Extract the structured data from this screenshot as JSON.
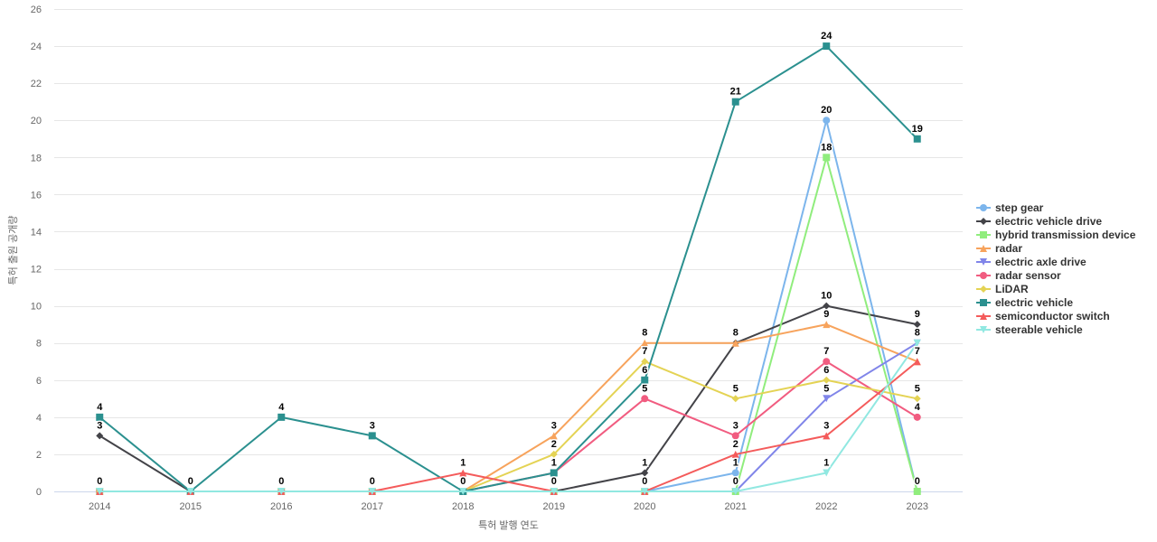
{
  "chart_data": {
    "type": "line",
    "title": "",
    "xlabel": "특허 발행 연도",
    "ylabel": "특허 출원 공개량",
    "categories": [
      "2014",
      "2015",
      "2016",
      "2017",
      "2018",
      "2019",
      "2020",
      "2021",
      "2022",
      "2023"
    ],
    "ylim": [
      0,
      26
    ],
    "ytick_step": 2,
    "grid": "horizontal",
    "legend_position": "right",
    "data_labels": true,
    "series": [
      {
        "name": "step gear",
        "color": "#7cb5ec",
        "marker": "circle",
        "values": [
          0,
          0,
          0,
          0,
          0,
          0,
          0,
          1,
          20,
          0
        ]
      },
      {
        "name": "electric vehicle drive",
        "color": "#434348",
        "marker": "diamond",
        "values": [
          3,
          0,
          0,
          0,
          0,
          0,
          1,
          8,
          10,
          9
        ]
      },
      {
        "name": "hybrid transmission device",
        "color": "#90ed7d",
        "marker": "square",
        "values": [
          0,
          0,
          0,
          0,
          0,
          0,
          0,
          0,
          18,
          0
        ]
      },
      {
        "name": "radar",
        "color": "#f7a35c",
        "marker": "triangle",
        "values": [
          0,
          0,
          0,
          0,
          0,
          3,
          8,
          8,
          9,
          7
        ]
      },
      {
        "name": "electric axle drive",
        "color": "#8085e9",
        "marker": "triangle-down",
        "values": [
          0,
          0,
          0,
          0,
          0,
          0,
          0,
          0,
          5,
          8
        ]
      },
      {
        "name": "radar sensor",
        "color": "#f15c80",
        "marker": "circle",
        "values": [
          0,
          0,
          0,
          0,
          0,
          1,
          5,
          3,
          7,
          4
        ]
      },
      {
        "name": "LiDAR",
        "color": "#e4d354",
        "marker": "diamond",
        "values": [
          0,
          0,
          0,
          0,
          0,
          2,
          7,
          5,
          6,
          5
        ]
      },
      {
        "name": "electric vehicle",
        "color": "#2b908f",
        "marker": "square",
        "values": [
          4,
          0,
          4,
          3,
          0,
          1,
          6,
          21,
          24,
          19
        ]
      },
      {
        "name": "semiconductor switch",
        "color": "#f45b5b",
        "marker": "triangle",
        "values": [
          0,
          0,
          0,
          0,
          1,
          0,
          0,
          2,
          3,
          7
        ]
      },
      {
        "name": "steerable vehicle",
        "color": "#91e8e1",
        "marker": "triangle-down",
        "values": [
          0,
          0,
          0,
          0,
          0,
          0,
          0,
          0,
          1,
          8
        ]
      }
    ],
    "colors": {
      "background": "#ffffff",
      "grid_line": "#e6e6e6",
      "axis_line": "#ccd6eb",
      "tick_text": "#666666",
      "axis_title_text": "#666666",
      "data_label_text": "#000000",
      "legend_text": "#333333"
    }
  }
}
